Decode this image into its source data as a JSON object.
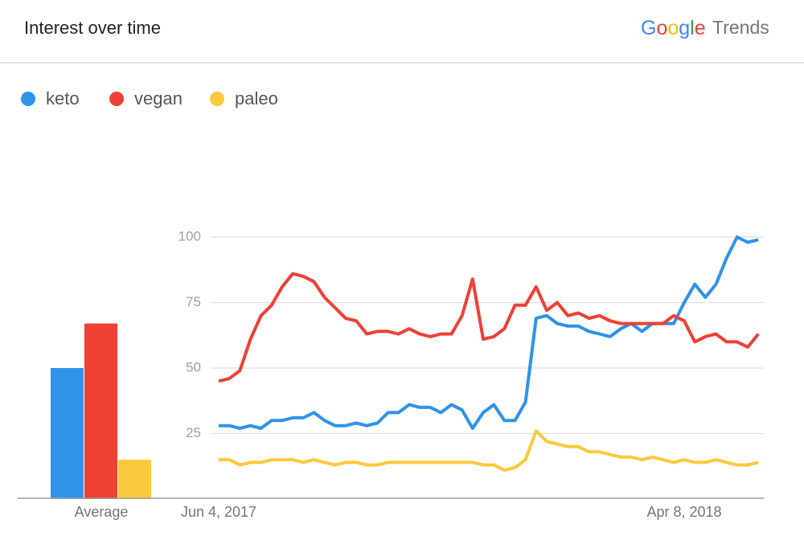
{
  "header": {
    "title": "Interest over time",
    "logo": {
      "brand": "Google",
      "product": "Trends"
    }
  },
  "chart_data": [
    {
      "type": "line",
      "categories": [
        "Jun 4, 2017",
        null,
        null,
        null,
        null,
        null,
        null,
        null,
        null,
        null,
        null,
        null,
        null,
        null,
        null,
        null,
        null,
        null,
        null,
        null,
        null,
        null,
        null,
        null,
        null,
        null,
        null,
        null,
        null,
        null,
        null,
        null,
        null,
        null,
        null,
        null,
        null,
        null,
        null,
        null,
        null,
        null,
        null,
        null,
        "Apr 8, 2018",
        null,
        null,
        null,
        null,
        null,
        null,
        null
      ],
      "series": [
        {
          "name": "keto",
          "color": "#2f93ea",
          "values": [
            28,
            28,
            27,
            28,
            27,
            30,
            30,
            31,
            31,
            33,
            30,
            28,
            28,
            29,
            28,
            29,
            33,
            33,
            36,
            35,
            35,
            33,
            36,
            34,
            27,
            33,
            36,
            30,
            30,
            37,
            69,
            70,
            67,
            66,
            66,
            64,
            63,
            62,
            65,
            67,
            64,
            67,
            67,
            67,
            75,
            82,
            77,
            82,
            92,
            100,
            98,
            99
          ]
        },
        {
          "name": "vegan",
          "color": "#ee4035",
          "values": [
            45,
            46,
            49,
            61,
            70,
            74,
            81,
            86,
            85,
            83,
            77,
            73,
            69,
            68,
            63,
            64,
            64,
            63,
            65,
            63,
            62,
            63,
            63,
            70,
            84,
            61,
            62,
            65,
            74,
            74,
            81,
            72,
            75,
            70,
            71,
            69,
            70,
            68,
            67,
            67,
            67,
            67,
            67,
            70,
            68,
            60,
            62,
            63,
            60,
            60,
            58,
            63
          ]
        },
        {
          "name": "paleo",
          "color": "#fbc93d",
          "values": [
            15,
            15,
            13,
            14,
            14,
            15,
            15,
            15,
            14,
            15,
            14,
            13,
            14,
            14,
            13,
            13,
            14,
            14,
            14,
            14,
            14,
            14,
            14,
            14,
            14,
            13,
            13,
            11,
            12,
            15,
            26,
            22,
            21,
            20,
            20,
            18,
            18,
            17,
            16,
            16,
            15,
            16,
            15,
            14,
            15,
            14,
            14,
            15,
            14,
            13,
            13,
            14
          ]
        }
      ],
      "ylim": [
        0,
        100
      ],
      "yticks": [
        25,
        50,
        75,
        100
      ],
      "grid": true
    },
    {
      "type": "bar",
      "categories": [
        "Average"
      ],
      "series": [
        {
          "color": "#2f93ea",
          "values": [
            50
          ]
        },
        {
          "color": "#ee4035",
          "values": [
            67
          ]
        },
        {
          "color": "#fbc93d",
          "values": [
            15
          ]
        }
      ],
      "ylim": [
        0,
        100
      ]
    }
  ]
}
